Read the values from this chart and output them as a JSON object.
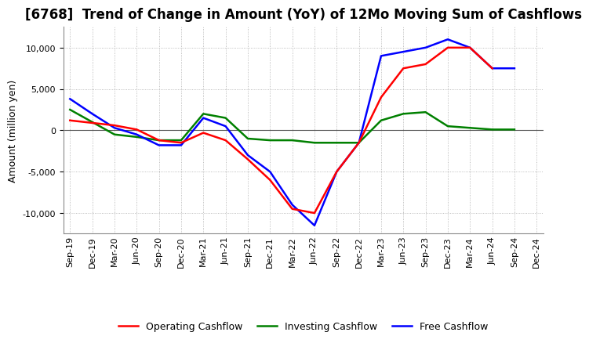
{
  "title": "[6768]  Trend of Change in Amount (YoY) of 12Mo Moving Sum of Cashflows",
  "ylabel": "Amount (million yen)",
  "ylim": [
    -12500,
    12500
  ],
  "yticks": [
    -10000,
    -5000,
    0,
    5000,
    10000
  ],
  "x_labels": [
    "Sep-19",
    "Dec-19",
    "Mar-20",
    "Jun-20",
    "Sep-20",
    "Dec-20",
    "Mar-21",
    "Jun-21",
    "Sep-21",
    "Dec-21",
    "Mar-22",
    "Jun-22",
    "Sep-22",
    "Dec-22",
    "Mar-23",
    "Jun-23",
    "Sep-23",
    "Dec-23",
    "Mar-24",
    "Jun-24",
    "Sep-24",
    "Dec-24"
  ],
  "operating": [
    1200,
    900,
    600,
    100,
    -1200,
    -1500,
    -300,
    -1200,
    -3500,
    -6000,
    -9500,
    -10000,
    -5000,
    -1500,
    4000,
    7500,
    8000,
    10000,
    10000,
    7500,
    null,
    null
  ],
  "investing": [
    2500,
    1000,
    -500,
    -800,
    -1200,
    -1200,
    2000,
    1500,
    -1000,
    -1200,
    -1200,
    -1500,
    -1500,
    -1500,
    1200,
    2000,
    2200,
    500,
    300,
    100,
    100,
    null
  ],
  "free": [
    3800,
    2000,
    300,
    -500,
    -1800,
    -1800,
    1500,
    500,
    -3000,
    -5000,
    -9000,
    -11500,
    -5000,
    -1500,
    9000,
    9500,
    10000,
    11000,
    10000,
    7500,
    7500,
    null
  ],
  "operating_color": "#ff0000",
  "investing_color": "#008000",
  "free_color": "#0000ff",
  "line_width": 1.8,
  "background_color": "#ffffff",
  "grid_color": "#aaaaaa",
  "title_fontsize": 12,
  "label_fontsize": 9,
  "tick_fontsize": 8
}
